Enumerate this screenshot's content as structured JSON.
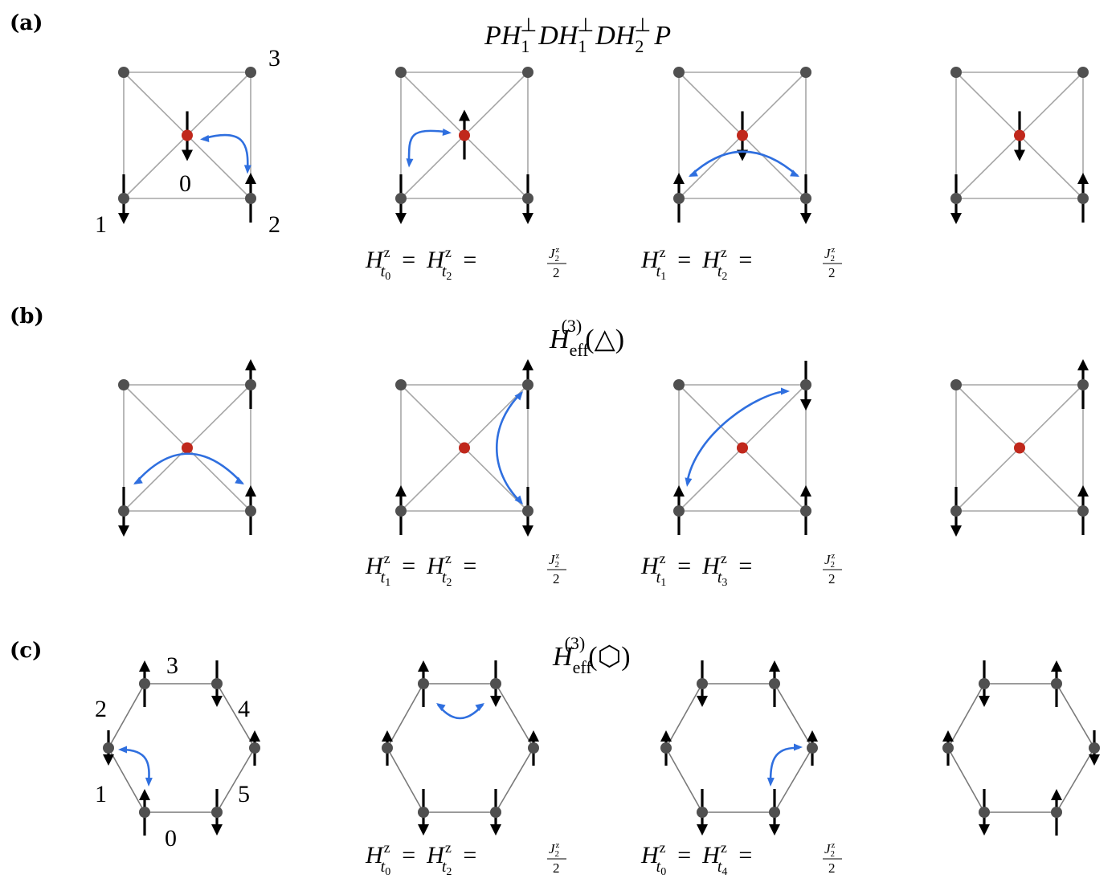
{
  "panels": [
    {
      "label": "(a)",
      "title": {
        "parts": [
          "P",
          "H",
          "1",
          "⊥",
          "D",
          "H",
          "1",
          "⊥",
          "D",
          "H",
          "2",
          "⊥",
          "P"
        ]
      },
      "site_labels": [
        "0",
        "1",
        "2",
        "3"
      ],
      "equations": [
        {
          "lhs_sub": "t",
          "lhs_subsub": "0",
          "mid_sub": "t",
          "mid_subsub": "2",
          "frac_num": "J",
          "frac_num_sub": "2",
          "frac_num_sup": "z",
          "frac_den": "2",
          "sym": "H",
          "sup": "z",
          "eq": "="
        },
        {
          "lhs_sub": "t",
          "lhs_subsub": "1",
          "mid_sub": "t",
          "mid_subsub": "2",
          "frac_num": "J",
          "frac_num_sub": "2",
          "frac_num_sup": "z",
          "frac_den": "2",
          "sym": "H",
          "sup": "z",
          "eq": "="
        }
      ]
    },
    {
      "label": "(b)",
      "title": {
        "sym": "H",
        "sub": "eff",
        "sup": "(3)",
        "arg": "(△)"
      },
      "equations": [
        {
          "lhs_sub": "t",
          "lhs_subsub": "1",
          "mid_sub": "t",
          "mid_subsub": "2",
          "frac_num": "J",
          "frac_num_sub": "2",
          "frac_num_sup": "z",
          "frac_den": "2",
          "sym": "H",
          "sup": "z",
          "eq": "="
        },
        {
          "lhs_sub": "t",
          "lhs_subsub": "1",
          "mid_sub": "t",
          "mid_subsub": "3",
          "frac_num": "J",
          "frac_num_sub": "2",
          "frac_num_sup": "z",
          "frac_den": "2",
          "sym": "H",
          "sup": "z",
          "eq": "="
        }
      ]
    },
    {
      "label": "(c)",
      "title": {
        "sym": "H",
        "sub": "eff",
        "sup": "(3)",
        "arg": "(⬡)"
      },
      "site_labels": [
        "0",
        "1",
        "2",
        "3",
        "4",
        "5"
      ],
      "equations": [
        {
          "lhs_sub": "t",
          "lhs_subsub": "0",
          "mid_sub": "t",
          "mid_subsub": "2",
          "frac_num": "J",
          "frac_num_sub": "2",
          "frac_num_sup": "z",
          "frac_den": "2",
          "sym": "H",
          "sup": "z",
          "eq": "="
        },
        {
          "lhs_sub": "t",
          "lhs_subsub": "0",
          "mid_sub": "t",
          "mid_subsub": "4",
          "frac_num": "J",
          "frac_num_sub": "2",
          "frac_num_sup": "z",
          "frac_den": "2",
          "sym": "H",
          "sup": "z",
          "eq": "="
        }
      ]
    }
  ],
  "colors": {
    "node": "#505050",
    "center": "#c0281c",
    "edge": "#a6a6a6",
    "hop": "#2f6fdf",
    "spin": "#000000"
  }
}
